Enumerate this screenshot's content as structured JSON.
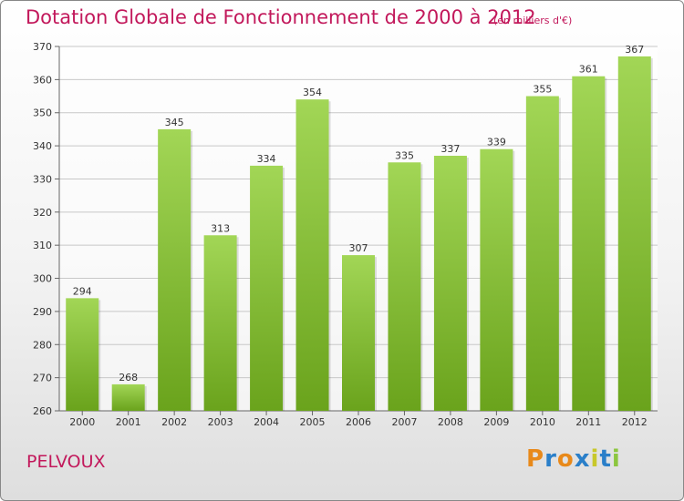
{
  "header": {
    "title": "Dotation Globale de Fonctionnement de 2000 à 2012",
    "unit": "(en milliers d'€)"
  },
  "footer": {
    "commune": "PELVOUX",
    "logo_letters": [
      "P",
      "r",
      "o",
      "x",
      "i",
      "t",
      "i"
    ],
    "logo_colors": [
      "#e8891a",
      "#2a7fc9",
      "#e8891a",
      "#2a7fc9",
      "#c8c82a",
      "#2a7fc9",
      "#8cc63f"
    ]
  },
  "colors": {
    "bar_top": "#a2d656",
    "bar_bottom": "#6aa31c",
    "grid": "#c8c8c8",
    "title": "#c2185b"
  },
  "chart_data": {
    "type": "bar",
    "title": "Dotation Globale de Fonctionnement de 2000 à 2012",
    "subtitle": "(en milliers d'€)",
    "categories": [
      "2000",
      "2001",
      "2002",
      "2003",
      "2004",
      "2005",
      "2006",
      "2007",
      "2008",
      "2009",
      "2010",
      "2011",
      "2012"
    ],
    "values": [
      294,
      268,
      345,
      313,
      334,
      354,
      307,
      335,
      337,
      339,
      355,
      361,
      367
    ],
    "ylim": [
      260,
      370
    ],
    "yticks": [
      260,
      270,
      280,
      290,
      300,
      310,
      320,
      330,
      340,
      350,
      360,
      370
    ],
    "grid": true,
    "data_labels": true
  }
}
